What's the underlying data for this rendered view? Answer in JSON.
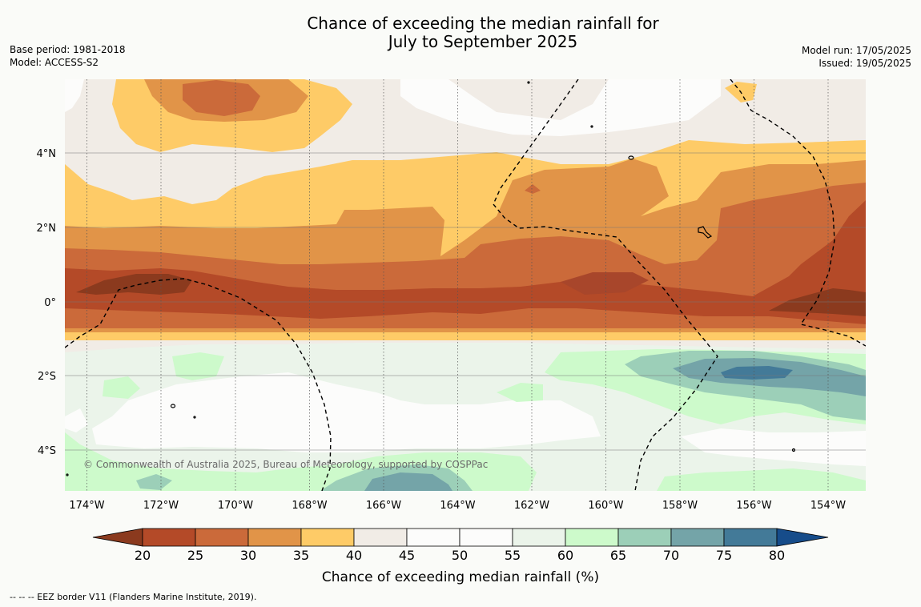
{
  "title_line1": "Chance of exceeding the median rainfall for",
  "title_line2": "July to September 2025",
  "base_period": "Base period: 1981-2018",
  "model": "Model: ACCESS-S2",
  "model_run": "Model run: 17/05/2025",
  "issued": "Issued: 19/05/2025",
  "copyright": "© Commonwealth of Australia 2025, Bureau of Meteorology, supported by COSPPac",
  "footer_note": "-- -- -- EEZ border V11 (Flanders Marine Institute, 2019).",
  "map": {
    "x_ticks": [
      "174°W",
      "172°W",
      "170°W",
      "168°W",
      "166°W",
      "164°W",
      "162°W",
      "160°W",
      "158°W",
      "156°W",
      "154°W"
    ],
    "y_ticks": [
      "4°N",
      "2°N",
      "0°",
      "2°S",
      "4°S"
    ]
  },
  "colorbar": {
    "label": "Chance of exceeding median rainfall (%)",
    "ticks": [
      "20",
      "25",
      "30",
      "35",
      "40",
      "45",
      "50",
      "55",
      "60",
      "65",
      "70",
      "75",
      "80"
    ],
    "colors": {
      "below_20": "#8b3a1e",
      "b20_25": "#b44a28",
      "b25_30": "#cb6a3a",
      "b30_35": "#e19448",
      "b35_40": "#fecb67",
      "b40_45": "#f1ece6",
      "b45_50": "#fcfcfb",
      "b50_55": "#fcfcfb",
      "b55_60": "#ebf4ea",
      "b60_65": "#cdfacb",
      "b65_70": "#9ccfb8",
      "b70_75": "#74a4a8",
      "b75_80": "#437a98",
      "above_80": "#164c8a"
    }
  }
}
